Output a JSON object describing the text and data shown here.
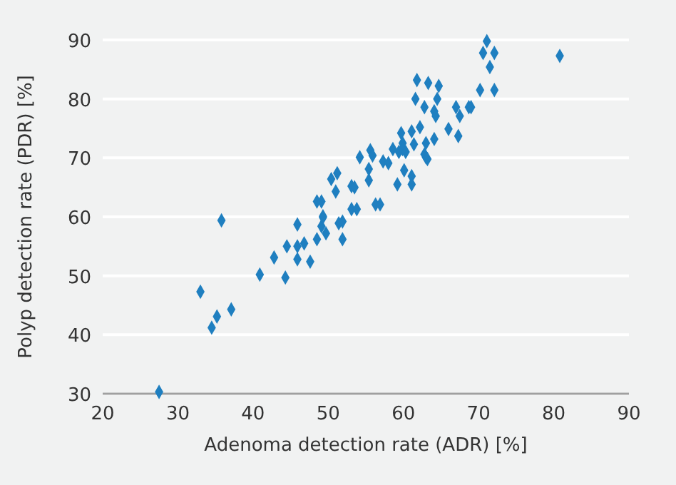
{
  "chart_data": {
    "type": "scatter",
    "xlabel": "Adenoma detection rate (ADR) [%]",
    "ylabel": "Polyp detection rate (PDR) [%]",
    "xlim": [
      20,
      90
    ],
    "xticks": [
      20,
      30,
      40,
      50,
      60,
      70,
      80,
      90
    ],
    "ylim": [
      30,
      90
    ],
    "yticks": [
      30,
      40,
      50,
      60,
      70,
      80,
      90
    ],
    "grid": "y",
    "marker": "diamond",
    "series": [
      {
        "color": "#1f7fc0",
        "x": [
          27.5,
          33.0,
          35.8,
          34.5,
          35.2,
          37.1,
          40.9,
          44.3,
          42.8,
          44.5,
          45.9,
          45.9,
          47.6,
          46.8,
          48.5,
          49.1,
          49.7,
          51.9,
          51.4,
          51.9,
          45.9,
          49.3,
          48.5,
          49.1,
          49.3,
          50.4,
          51.2,
          51.0,
          53.1,
          53.5,
          53.1,
          53.8,
          54.2,
          55.4,
          55.4,
          55.6,
          55.9,
          56.3,
          56.9,
          57.3,
          58.0,
          58.6,
          59.2,
          59.4,
          59.7,
          59.9,
          59.9,
          60.3,
          60.1,
          61.1,
          61.1,
          61.1,
          61.4,
          61.6,
          61.8,
          62.2,
          62.8,
          62.8,
          63.0,
          63.2,
          63.0,
          63.3,
          64.1,
          64.3,
          64.5,
          64.7,
          64.1,
          66.0,
          67.0,
          67.5,
          67.3,
          68.7,
          69.0,
          70.2,
          70.6,
          71.1,
          72.1,
          71.5,
          72.1,
          80.8
        ],
        "values": [
          30.3,
          47.3,
          59.4,
          41.2,
          43.1,
          44.3,
          50.2,
          49.7,
          53.1,
          55.0,
          55.0,
          52.8,
          52.4,
          55.5,
          56.2,
          58.4,
          57.2,
          56.2,
          58.9,
          59.2,
          58.7,
          59.9,
          62.6,
          62.6,
          60.1,
          66.4,
          67.4,
          64.3,
          65.2,
          65.0,
          61.3,
          61.3,
          70.1,
          68.1,
          66.2,
          71.3,
          70.4,
          62.1,
          62.1,
          69.4,
          69.1,
          71.5,
          65.5,
          71.0,
          74.2,
          72.5,
          71.5,
          71.0,
          67.9,
          66.9,
          65.5,
          74.5,
          72.3,
          80.0,
          83.2,
          75.2,
          78.6,
          70.6,
          70.1,
          69.8,
          72.5,
          82.7,
          77.9,
          77.1,
          80.0,
          82.2,
          73.2,
          74.9,
          78.6,
          77.1,
          73.7,
          78.6,
          78.6,
          81.5,
          87.8,
          89.8,
          87.8,
          85.4,
          81.5,
          87.3
        ]
      }
    ]
  }
}
